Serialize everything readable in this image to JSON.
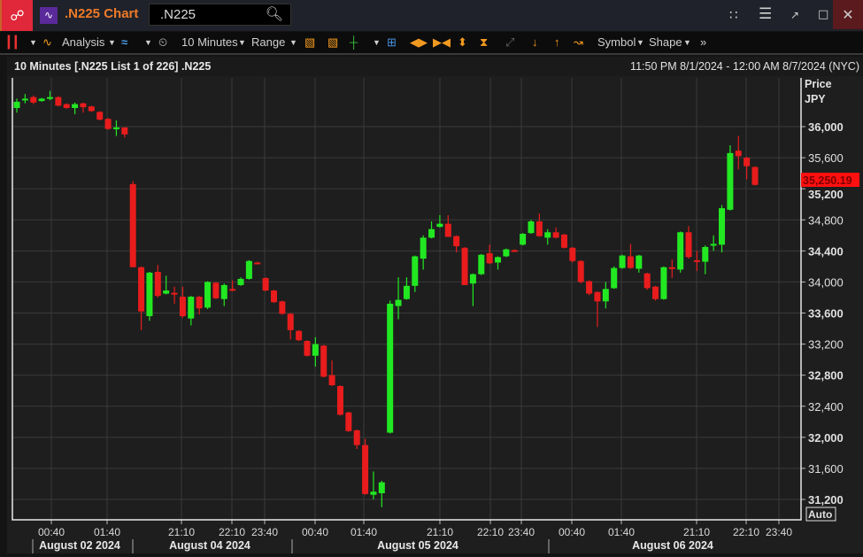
{
  "window": {
    "title": ".N225 Chart",
    "search_value": ".N225",
    "icons": [
      "link-icon",
      "chart-app-icon",
      "search-icon",
      "tree-icon",
      "menu-icon",
      "popout-icon",
      "maximize-icon",
      "close-icon"
    ]
  },
  "toolbar": {
    "analysis": "Analysis",
    "interval": "10 Minutes",
    "range": "Range",
    "symbol": "Symbol",
    "shape": "Shape"
  },
  "header": {
    "left": "10 Minutes [.N225 List 1 of 226] .N225",
    "right": "11:50 PM 8/1/2024 - 12:00 AM 8/7/2024 (NYC)"
  },
  "colors": {
    "up": "#22e822",
    "down": "#e81c1c",
    "accent": "#f07a28",
    "last_price_bg": "#ff1010"
  },
  "chart_data": {
    "type": "candlestick",
    "y_title": "Price",
    "y_unit": "JPY",
    "ylim": [
      31050,
      36600
    ],
    "yticks": [
      36000,
      35600,
      35200,
      34800,
      34400,
      34000,
      33600,
      33200,
      32800,
      32400,
      32000,
      31600,
      31200
    ],
    "ytick_labels": [
      "36,000",
      "35,600",
      "35,200",
      "34,800",
      "34,400",
      "34,000",
      "33,600",
      "33,200",
      "32,800",
      "32,400",
      "32,000",
      "31,600",
      "31,200"
    ],
    "xtick_labels": [
      "00:40",
      "01:40",
      "21:10",
      "22:10",
      "23:40",
      "00:40",
      "01:40",
      "21:10",
      "22:10",
      "23:40",
      "00:40",
      "01:40",
      "21:10",
      "22:10",
      "23:40"
    ],
    "date_labels": [
      "August 02 2024",
      "August 04 2024",
      "August 05 2024",
      "August 06 2024"
    ],
    "last_price": "35,250.19",
    "scale_mode": "Auto",
    "grid": true,
    "candles": [
      [
        36240,
        36360,
        36180,
        36320
      ],
      [
        36340,
        36420,
        36300,
        36360
      ],
      [
        36380,
        36400,
        36290,
        36310
      ],
      [
        36330,
        36370,
        36320,
        36360
      ],
      [
        36370,
        36460,
        36340,
        36380
      ],
      [
        36380,
        36390,
        36260,
        36270
      ],
      [
        36290,
        36300,
        36230,
        36240
      ],
      [
        36240,
        36310,
        36160,
        36290
      ],
      [
        36300,
        36310,
        36180,
        36250
      ],
      [
        36260,
        36270,
        36190,
        36200
      ],
      [
        36190,
        36200,
        36080,
        36090
      ],
      [
        36100,
        36110,
        35960,
        35970
      ],
      [
        35980,
        36080,
        35880,
        35990
      ],
      [
        35990,
        35990,
        35860,
        35900
      ],
      [
        35260,
        35300,
        34190,
        34190
      ],
      [
        34190,
        34200,
        33380,
        33620
      ],
      [
        33560,
        34130,
        33500,
        34120
      ],
      [
        34130,
        34220,
        33800,
        33820
      ],
      [
        33850,
        34080,
        33840,
        33890
      ],
      [
        33860,
        33940,
        33720,
        33840
      ],
      [
        33810,
        33940,
        33540,
        33560
      ],
      [
        33530,
        33820,
        33440,
        33810
      ],
      [
        33810,
        33820,
        33580,
        33660
      ],
      [
        33670,
        34010,
        33650,
        34000
      ],
      [
        33990,
        34000,
        33780,
        33790
      ],
      [
        33780,
        33980,
        33690,
        33960
      ],
      [
        33910,
        34020,
        33880,
        33890
      ],
      [
        33960,
        34060,
        33950,
        34040
      ],
      [
        34040,
        34280,
        34030,
        34270
      ],
      [
        34250,
        34260,
        34230,
        34240
      ],
      [
        34050,
        34060,
        33880,
        33890
      ],
      [
        33890,
        33900,
        33730,
        33740
      ],
      [
        33750,
        33760,
        33580,
        33590
      ],
      [
        33590,
        33600,
        33260,
        33380
      ],
      [
        33370,
        33380,
        33240,
        33250
      ],
      [
        33240,
        33250,
        33040,
        33050
      ],
      [
        33050,
        33290,
        32910,
        33200
      ],
      [
        33180,
        33190,
        32770,
        32780
      ],
      [
        32800,
        32990,
        32660,
        32670
      ],
      [
        32660,
        32670,
        32280,
        32290
      ],
      [
        32320,
        32330,
        32070,
        32080
      ],
      [
        32090,
        32100,
        31850,
        31900
      ],
      [
        31900,
        31980,
        31260,
        31270
      ],
      [
        31260,
        31560,
        31200,
        31300
      ],
      [
        31280,
        31440,
        31100,
        31420
      ],
      [
        32060,
        33760,
        32050,
        33720
      ],
      [
        33690,
        34060,
        33520,
        33770
      ],
      [
        33780,
        34060,
        33770,
        33950
      ],
      [
        33950,
        34340,
        33870,
        34330
      ],
      [
        34300,
        34600,
        34160,
        34570
      ],
      [
        34570,
        34780,
        34560,
        34680
      ],
      [
        34710,
        34860,
        34700,
        34750
      ],
      [
        34750,
        34860,
        34580,
        34580
      ],
      [
        34590,
        34600,
        34380,
        34460
      ],
      [
        34440,
        34450,
        33960,
        33960
      ],
      [
        33980,
        34110,
        33690,
        34100
      ],
      [
        34100,
        34360,
        34090,
        34350
      ],
      [
        34370,
        34480,
        34230,
        34240
      ],
      [
        34250,
        34330,
        34160,
        34320
      ],
      [
        34330,
        34430,
        34320,
        34420
      ],
      [
        34410,
        34420,
        34400,
        34400
      ],
      [
        34480,
        34630,
        34470,
        34620
      ],
      [
        34630,
        34800,
        34620,
        34780
      ],
      [
        34780,
        34880,
        34580,
        34590
      ],
      [
        34570,
        34680,
        34480,
        34640
      ],
      [
        34640,
        34700,
        34560,
        34570
      ],
      [
        34610,
        34620,
        34430,
        34440
      ],
      [
        34440,
        34450,
        34250,
        34270
      ],
      [
        34270,
        34280,
        33980,
        34000
      ],
      [
        34010,
        34020,
        33830,
        33850
      ],
      [
        33870,
        33880,
        33420,
        33750
      ],
      [
        33750,
        34000,
        33660,
        33910
      ],
      [
        33920,
        34200,
        33910,
        34180
      ],
      [
        34180,
        34350,
        34170,
        34340
      ],
      [
        34330,
        34490,
        34170,
        34180
      ],
      [
        34170,
        34350,
        34120,
        34340
      ],
      [
        34110,
        34120,
        33900,
        33920
      ],
      [
        33940,
        33950,
        33760,
        33780
      ],
      [
        33780,
        34200,
        33770,
        34190
      ],
      [
        34190,
        34290,
        34050,
        34170
      ],
      [
        34160,
        34650,
        34120,
        34640
      ],
      [
        34640,
        34720,
        34300,
        34320
      ],
      [
        34280,
        34400,
        34140,
        34260
      ],
      [
        34260,
        34470,
        34100,
        34450
      ],
      [
        34470,
        34600,
        34400,
        34490
      ],
      [
        34480,
        34990,
        34380,
        34950
      ],
      [
        34930,
        35760,
        34920,
        35660
      ],
      [
        35690,
        35880,
        35450,
        35620
      ],
      [
        35600,
        35610,
        35320,
        35490
      ],
      [
        35480,
        35490,
        35240,
        35250
      ]
    ]
  }
}
